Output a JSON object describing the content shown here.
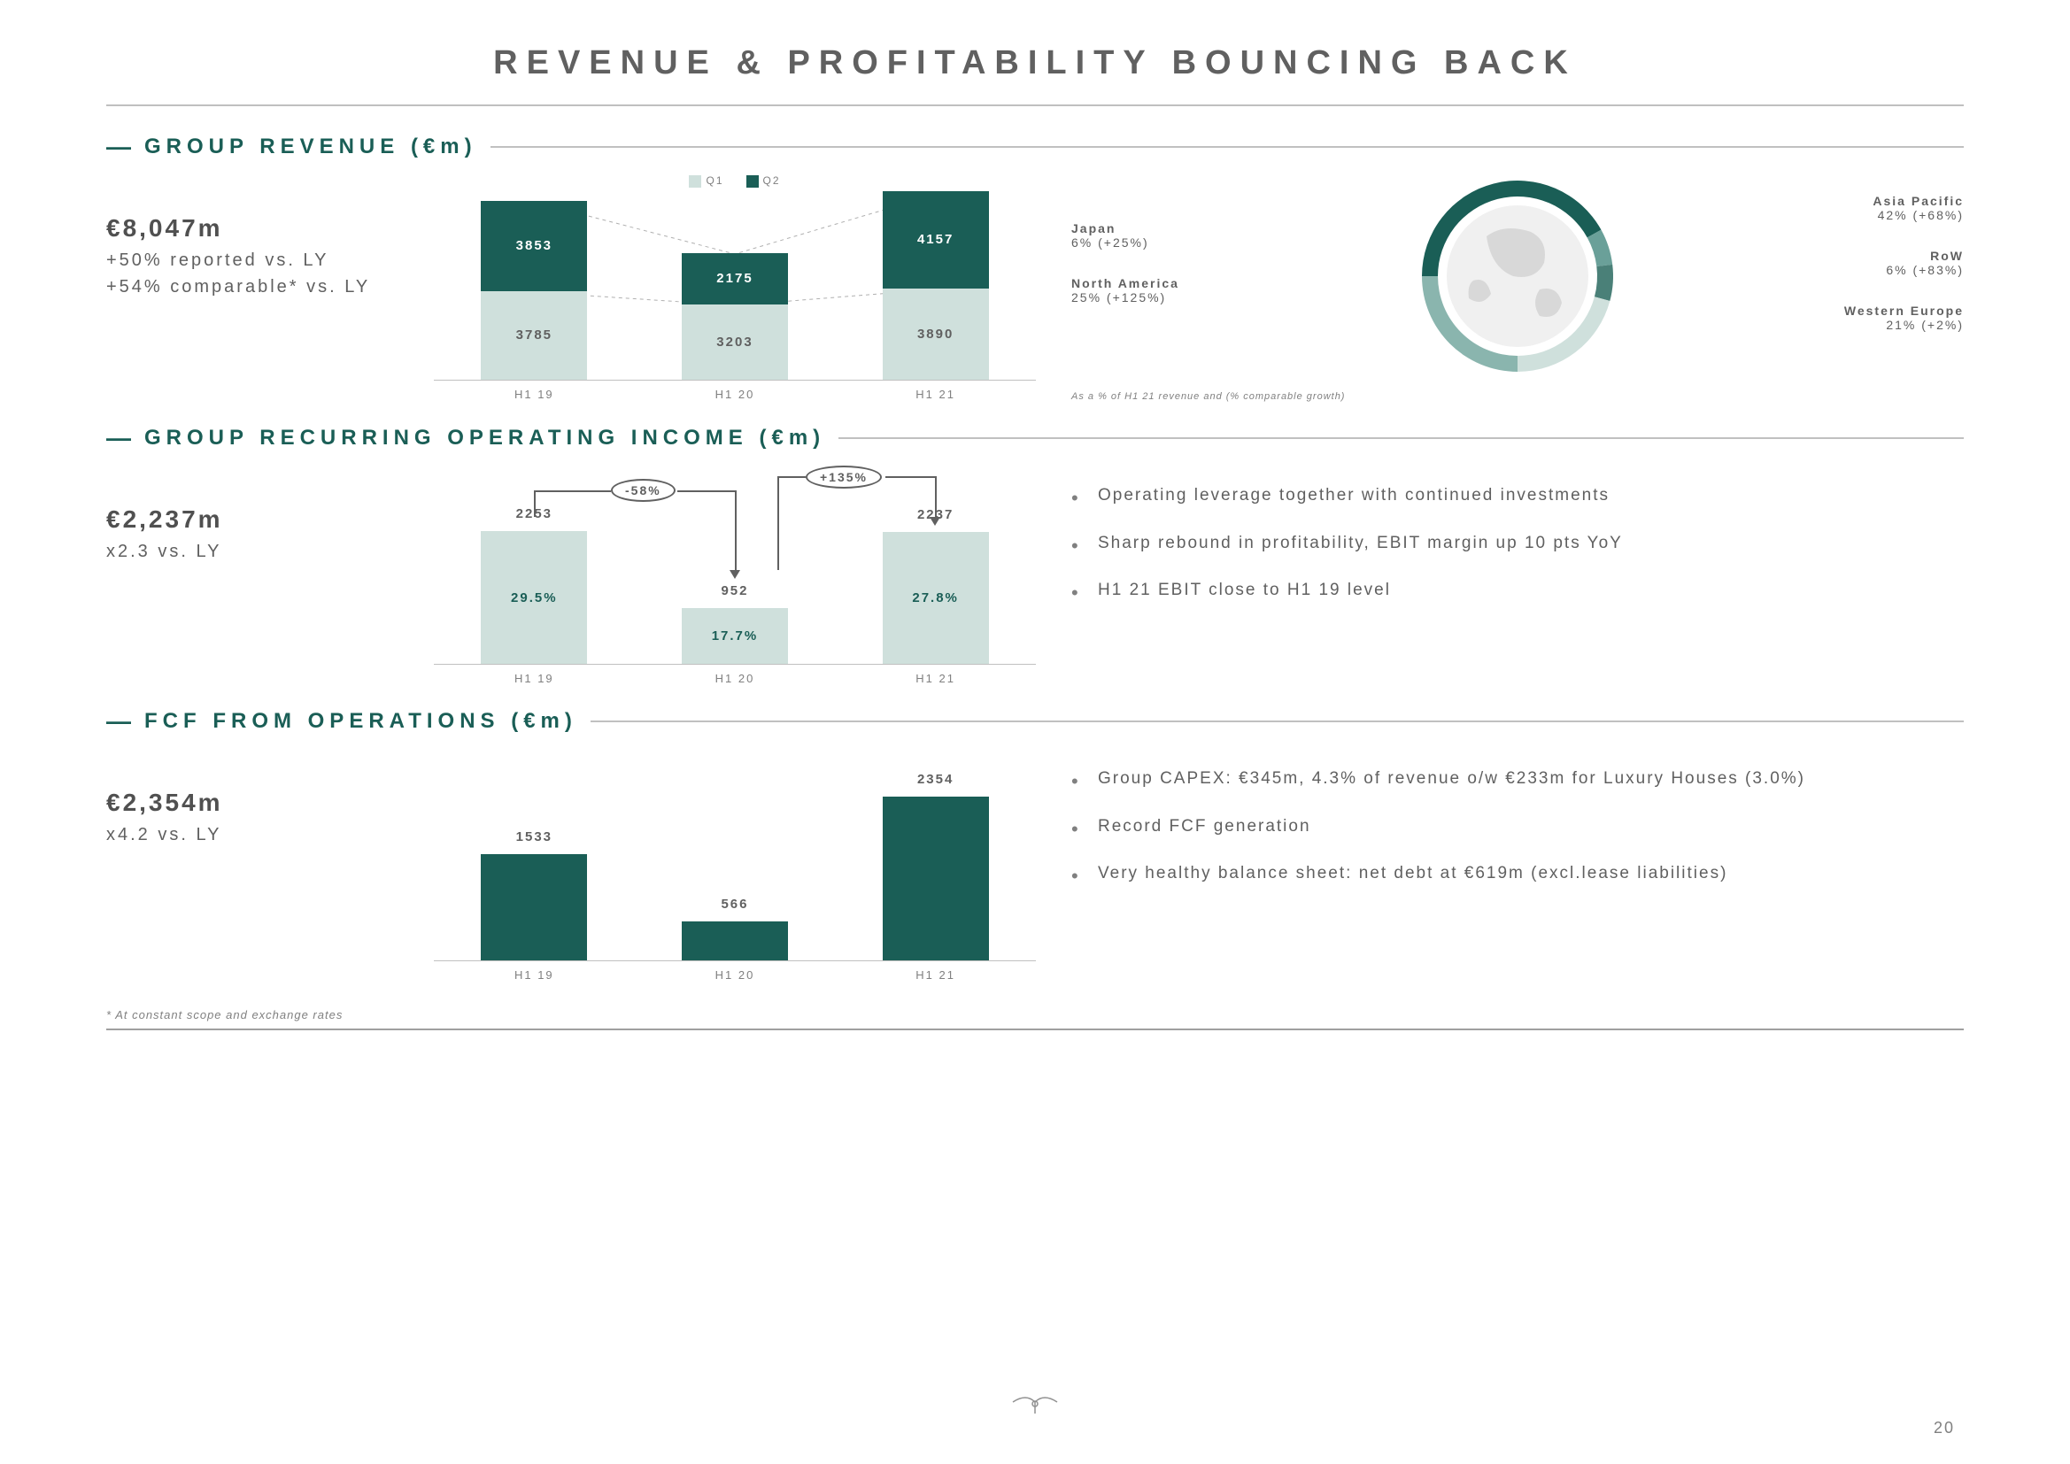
{
  "page_title": "REVENUE & PROFITABILITY BOUNCING BACK",
  "page_number": "20",
  "footnote": "* At constant scope and exchange rates",
  "colors": {
    "dark": "#1a5e56",
    "light": "#cfe0dc",
    "text": "#606060",
    "grid": "#c0c0c0",
    "bg": "#ffffff"
  },
  "section1": {
    "title": "GROUP REVENUE (€m)",
    "kpi_value": "€8,047m",
    "kpi_line1": "+50% reported vs. LY",
    "kpi_line2": "+54% comparable* vs. LY",
    "legend": {
      "q1": "Q1",
      "q2": "Q2"
    },
    "chart": {
      "type": "stacked-bar",
      "x_labels": [
        "H1 19",
        "H1 20",
        "H1 21"
      ],
      "bars": [
        {
          "q1": 3785,
          "q2": 3853,
          "q1_h": 100,
          "q2_h": 102
        },
        {
          "q1": 3203,
          "q2": 2175,
          "q1_h": 85,
          "q2_h": 58
        },
        {
          "q1": 3890,
          "q2": 4157,
          "q1_h": 103,
          "q2_h": 110
        }
      ]
    },
    "globe": {
      "left": [
        {
          "name": "Japan",
          "val": "6% (+25%)"
        },
        {
          "name": "North America",
          "val": "25% (+125%)"
        }
      ],
      "right": [
        {
          "name": "Asia Pacific",
          "val": "42% (+68%)"
        },
        {
          "name": "RoW",
          "val": "6% (+83%)"
        },
        {
          "name": "Western Europe",
          "val": "21% (+2%)"
        }
      ],
      "footnote": "As a % of H1 21 revenue and (% comparable growth)",
      "segments": [
        {
          "color": "#1a5e56",
          "start": 270,
          "sweep": 151
        },
        {
          "color": "#6aa099",
          "start": 61,
          "sweep": 22
        },
        {
          "color": "#4a8078",
          "start": 83,
          "sweep": 22
        },
        {
          "color": "#cfe0dc",
          "start": 105,
          "sweep": 75
        },
        {
          "color": "#8ab5ae",
          "start": 180,
          "sweep": 90
        }
      ]
    }
  },
  "section2": {
    "title": "GROUP RECURRING OPERATING INCOME (€m)",
    "kpi_value": "€2,237m",
    "kpi_line1": "x2.3 vs. LY",
    "callouts": {
      "c1": "-58%",
      "c2": "+135%"
    },
    "chart": {
      "type": "bar-with-margin",
      "x_labels": [
        "H1 19",
        "H1 20",
        "H1 21"
      ],
      "bars": [
        {
          "val": 2253,
          "margin": "29.5%",
          "h": 150
        },
        {
          "val": 952,
          "margin": "17.7%",
          "h": 63
        },
        {
          "val": 2237,
          "margin": "27.8%",
          "h": 149
        }
      ]
    },
    "bullets": [
      "Operating leverage together with continued investments",
      "Sharp rebound in profitability, EBIT margin up 10 pts YoY",
      "H1 21 EBIT close to H1 19 level"
    ]
  },
  "section3": {
    "title": "FCF FROM OPERATIONS (€m)",
    "kpi_value": "€2,354m",
    "kpi_line1": "x4.2 vs. LY",
    "chart": {
      "type": "bar",
      "x_labels": [
        "H1 19",
        "H1 20",
        "H1 21"
      ],
      "bars": [
        {
          "val": 1533,
          "h": 120
        },
        {
          "val": 566,
          "h": 44
        },
        {
          "val": 2354,
          "h": 185
        }
      ]
    },
    "bullets": [
      "Group CAPEX: €345m, 4.3% of revenue o/w €233m for Luxury Houses (3.0%)",
      "Record FCF generation",
      "Very healthy balance sheet: net debt at €619m (excl.lease liabilities)"
    ]
  }
}
